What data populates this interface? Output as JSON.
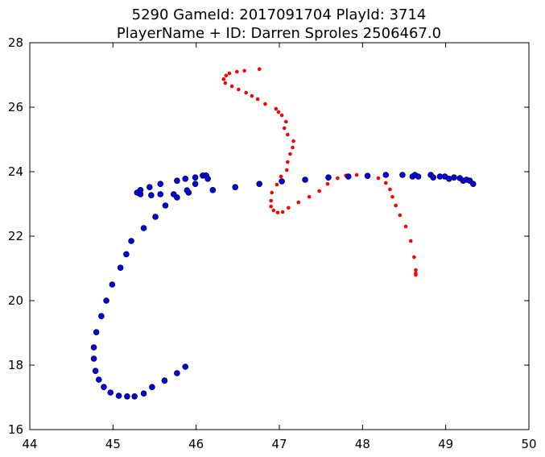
{
  "chart_data": {
    "type": "scatter",
    "title_lines": [
      "5290 GameId: 2017091704 PlayId: 3714",
      "PlayerName + ID: Darren Sproles 2506467.0"
    ],
    "xlabel": "",
    "ylabel": "",
    "xlim": [
      44,
      50
    ],
    "ylim": [
      16,
      28
    ],
    "x_ticks": [
      44,
      45,
      46,
      47,
      48,
      49,
      50
    ],
    "y_ticks": [
      16,
      18,
      20,
      22,
      24,
      26,
      28
    ],
    "grid": false,
    "legend": "none",
    "series": [
      {
        "color": "#0000ff",
        "marker": "circle",
        "points": [
          [
            45.87,
            17.95
          ],
          [
            45.77,
            17.75
          ],
          [
            45.62,
            17.52
          ],
          [
            45.47,
            17.32
          ],
          [
            45.37,
            17.12
          ],
          [
            45.26,
            17.03
          ],
          [
            45.17,
            17.03
          ],
          [
            45.07,
            17.05
          ],
          [
            44.97,
            17.15
          ],
          [
            44.89,
            17.32
          ],
          [
            44.83,
            17.55
          ],
          [
            44.79,
            17.82
          ],
          [
            44.77,
            18.2
          ],
          [
            44.77,
            18.55
          ],
          [
            44.8,
            19.02
          ],
          [
            44.86,
            19.52
          ],
          [
            44.92,
            20.0
          ],
          [
            44.99,
            20.5
          ],
          [
            45.09,
            21.02
          ],
          [
            45.16,
            21.44
          ],
          [
            45.22,
            21.85
          ],
          [
            45.37,
            22.25
          ],
          [
            45.51,
            22.6
          ],
          [
            45.63,
            22.95
          ],
          [
            45.77,
            23.2
          ],
          [
            45.73,
            23.3
          ],
          [
            45.91,
            23.35
          ],
          [
            45.89,
            23.42
          ],
          [
            45.33,
            23.3
          ],
          [
            45.29,
            23.35
          ],
          [
            45.46,
            23.27
          ],
          [
            45.57,
            23.3
          ],
          [
            45.33,
            23.43
          ],
          [
            45.44,
            23.52
          ],
          [
            45.57,
            23.62
          ],
          [
            45.77,
            23.72
          ],
          [
            45.87,
            23.78
          ],
          [
            45.99,
            23.62
          ],
          [
            45.99,
            23.82
          ],
          [
            46.08,
            23.88
          ],
          [
            46.12,
            23.88
          ],
          [
            46.14,
            23.78
          ],
          [
            46.2,
            23.43
          ],
          [
            46.47,
            23.52
          ],
          [
            46.76,
            23.62
          ],
          [
            47.03,
            23.7
          ],
          [
            47.31,
            23.75
          ],
          [
            47.59,
            23.82
          ],
          [
            47.83,
            23.85
          ],
          [
            48.06,
            23.87
          ],
          [
            48.28,
            23.9
          ],
          [
            48.48,
            23.9
          ],
          [
            48.6,
            23.85
          ],
          [
            48.63,
            23.9
          ],
          [
            48.67,
            23.85
          ],
          [
            48.82,
            23.9
          ],
          [
            48.85,
            23.82
          ],
          [
            48.93,
            23.85
          ],
          [
            48.99,
            23.85
          ],
          [
            49.04,
            23.78
          ],
          [
            49.1,
            23.82
          ],
          [
            49.17,
            23.8
          ],
          [
            49.21,
            23.72
          ],
          [
            49.25,
            23.75
          ],
          [
            49.29,
            23.72
          ],
          [
            49.33,
            23.62
          ]
        ]
      },
      {
        "color": "#ff0000",
        "marker": "circle",
        "points": [
          [
            46.76,
            27.18
          ],
          [
            46.58,
            27.13
          ],
          [
            46.49,
            27.1
          ],
          [
            46.4,
            27.05
          ],
          [
            46.36,
            26.98
          ],
          [
            46.33,
            26.87
          ],
          [
            46.35,
            26.75
          ],
          [
            46.43,
            26.65
          ],
          [
            46.51,
            26.55
          ],
          [
            46.6,
            26.45
          ],
          [
            46.67,
            26.35
          ],
          [
            46.74,
            26.25
          ],
          [
            46.83,
            26.1
          ],
          [
            46.96,
            25.95
          ],
          [
            46.99,
            25.85
          ],
          [
            47.03,
            25.75
          ],
          [
            47.08,
            25.55
          ],
          [
            47.06,
            25.35
          ],
          [
            47.1,
            25.15
          ],
          [
            47.17,
            24.95
          ],
          [
            47.16,
            24.75
          ],
          [
            47.13,
            24.55
          ],
          [
            47.1,
            24.3
          ],
          [
            47.09,
            24.05
          ],
          [
            47.02,
            23.85
          ],
          [
            46.97,
            23.6
          ],
          [
            46.91,
            23.35
          ],
          [
            46.9,
            23.1
          ],
          [
            46.9,
            22.92
          ],
          [
            46.93,
            22.8
          ],
          [
            46.98,
            22.73
          ],
          [
            47.04,
            22.75
          ],
          [
            47.11,
            22.88
          ],
          [
            47.23,
            23.05
          ],
          [
            47.36,
            23.22
          ],
          [
            47.48,
            23.4
          ],
          [
            47.58,
            23.62
          ],
          [
            47.7,
            23.8
          ],
          [
            47.8,
            23.88
          ],
          [
            47.93,
            23.9
          ],
          [
            48.07,
            23.88
          ],
          [
            48.19,
            23.8
          ],
          [
            48.28,
            23.65
          ],
          [
            48.33,
            23.45
          ],
          [
            48.36,
            23.22
          ],
          [
            48.4,
            22.95
          ],
          [
            48.45,
            22.65
          ],
          [
            48.52,
            22.3
          ],
          [
            48.58,
            21.85
          ],
          [
            48.62,
            21.35
          ],
          [
            48.64,
            20.95
          ],
          [
            48.64,
            20.85
          ],
          [
            48.64,
            20.8
          ]
        ]
      }
    ]
  }
}
